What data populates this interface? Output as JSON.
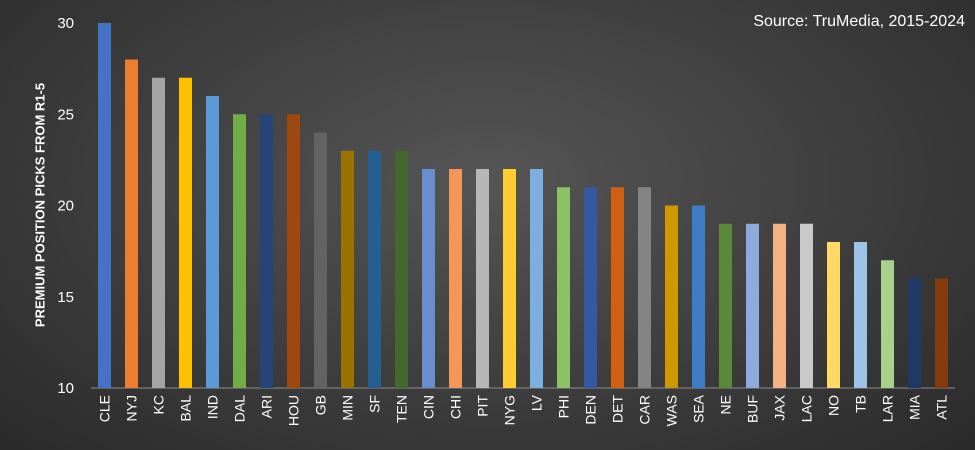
{
  "chart_data": {
    "type": "bar",
    "annotation": "Source: TruMedia, 2015-2024",
    "xlabel": "",
    "ylabel": "PREMIUM POSITION PICKS FROM R1-5",
    "ylim": [
      10,
      30
    ],
    "yticks": [
      10,
      15,
      20,
      25,
      30
    ],
    "grid": false,
    "categories": [
      "CLE",
      "NYJ",
      "KC",
      "BAL",
      "IND",
      "DAL",
      "ARI",
      "HOU",
      "GB",
      "MIN",
      "SF",
      "TEN",
      "CIN",
      "CHI",
      "PIT",
      "NYG",
      "LV",
      "PHI",
      "DEN",
      "DET",
      "CAR",
      "WAS",
      "SEA",
      "NE",
      "BUF",
      "JAX",
      "LAC",
      "NO",
      "TB",
      "LAR",
      "MIA",
      "ATL"
    ],
    "values": [
      30,
      28,
      27,
      27,
      26,
      25,
      25,
      25,
      24,
      23,
      23,
      23,
      22,
      22,
      22,
      22,
      22,
      21,
      21,
      21,
      21,
      20,
      20,
      19,
      19,
      19,
      19,
      18,
      18,
      17,
      16,
      16
    ],
    "bar_colors": [
      "#4472c4",
      "#ed7d31",
      "#a5a5a5",
      "#ffc000",
      "#5b9bd5",
      "#70ad47",
      "#264478",
      "#9e480e",
      "#636363",
      "#997300",
      "#255e91",
      "#43682b",
      "#698ed0",
      "#f1975a",
      "#b7b7b7",
      "#ffcd33",
      "#7cafdd",
      "#8cc168",
      "#335aa1",
      "#d26012",
      "#848484",
      "#cc9a00",
      "#3c7dc4",
      "#5a8a39",
      "#8faadc",
      "#f4b183",
      "#c9c9c9",
      "#ffd966",
      "#9dc3e6",
      "#a9d18e",
      "#203864",
      "#843c0c"
    ]
  }
}
